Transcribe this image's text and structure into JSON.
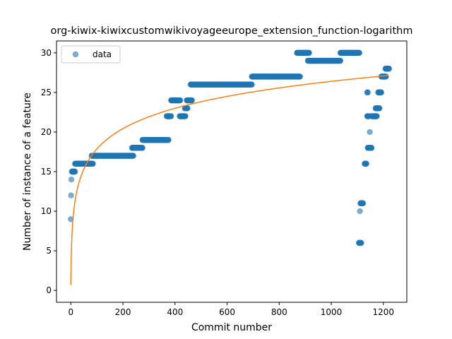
{
  "chart_data": {
    "type": "scatter",
    "title": "org-kiwix-kiwixcustomwikivoyageeurope_extension_function-logarithm",
    "xlabel": "Commit number",
    "ylabel": "Number of instance of a feature",
    "xlim": [
      -55,
      1290
    ],
    "ylim": [
      -1.5,
      31.5
    ],
    "xticks": [
      0,
      200,
      400,
      600,
      800,
      1000,
      1200
    ],
    "yticks": [
      0,
      5,
      10,
      15,
      20,
      25,
      30
    ],
    "grid": false,
    "legend": {
      "placement": "upper-left",
      "entries": [
        "data"
      ]
    },
    "colors": {
      "data": "#1f77b4",
      "fit": "#ff7f0e"
    },
    "series": [
      {
        "name": "data",
        "kind": "scatter",
        "segments": [
          {
            "x_start": 0,
            "x_end": 0,
            "y": 9
          },
          {
            "x_start": 1,
            "x_end": 1,
            "y": 12
          },
          {
            "x_start": 2,
            "x_end": 2,
            "y": 14
          },
          {
            "x_start": 4,
            "x_end": 16,
            "y": 15
          },
          {
            "x_start": 16,
            "x_end": 85,
            "y": 16
          },
          {
            "x_start": 80,
            "x_end": 240,
            "y": 17
          },
          {
            "x_start": 235,
            "x_end": 275,
            "y": 18
          },
          {
            "x_start": 275,
            "x_end": 375,
            "y": 19
          },
          {
            "x_start": 368,
            "x_end": 385,
            "y": 22
          },
          {
            "x_start": 385,
            "x_end": 420,
            "y": 24
          },
          {
            "x_start": 418,
            "x_end": 440,
            "y": 22
          },
          {
            "x_start": 438,
            "x_end": 448,
            "y": 23
          },
          {
            "x_start": 445,
            "x_end": 465,
            "y": 24
          },
          {
            "x_start": 460,
            "x_end": 695,
            "y": 26
          },
          {
            "x_start": 695,
            "x_end": 880,
            "y": 27
          },
          {
            "x_start": 868,
            "x_end": 915,
            "y": 30
          },
          {
            "x_start": 910,
            "x_end": 1035,
            "y": 29
          },
          {
            "x_start": 1035,
            "x_end": 1108,
            "y": 30
          },
          {
            "x_start": 1106,
            "x_end": 1115,
            "y": 6
          },
          {
            "x_start": 1110,
            "x_end": 1110,
            "y": 10
          },
          {
            "x_start": 1112,
            "x_end": 1122,
            "y": 11
          },
          {
            "x_start": 1128,
            "x_end": 1135,
            "y": 16
          },
          {
            "x_start": 1138,
            "x_end": 1140,
            "y": 25
          },
          {
            "x_start": 1138,
            "x_end": 1145,
            "y": 22
          },
          {
            "x_start": 1140,
            "x_end": 1155,
            "y": 18
          },
          {
            "x_start": 1148,
            "x_end": 1148,
            "y": 20
          },
          {
            "x_start": 1155,
            "x_end": 1175,
            "y": 22
          },
          {
            "x_start": 1170,
            "x_end": 1185,
            "y": 23
          },
          {
            "x_start": 1180,
            "x_end": 1192,
            "y": 25
          },
          {
            "x_start": 1192,
            "x_end": 1210,
            "y": 27
          },
          {
            "x_start": 1208,
            "x_end": 1222,
            "y": 28
          }
        ]
      },
      {
        "name": "",
        "kind": "line",
        "model": "logarithm",
        "coefficients": {
          "a": 0.7,
          "b": 3.72
        },
        "x_range": [
          0,
          1220
        ]
      }
    ]
  }
}
